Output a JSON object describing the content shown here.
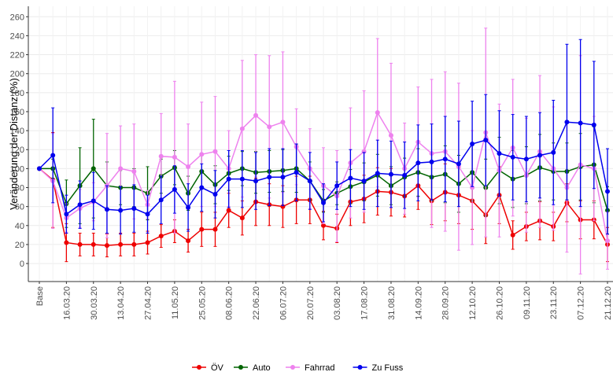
{
  "chart_data": {
    "type": "line",
    "y_label": "Veränderung der Distanz (%)",
    "categories": [
      "Base",
      null,
      "16.03.20",
      null,
      "30.03.20",
      null,
      "13.04.20",
      null,
      "27.04.20",
      null,
      "11.05.20",
      null,
      "25.05.20",
      null,
      "08.06.20",
      null,
      "22.06.20",
      null,
      "06.07.20",
      null,
      "20.07.20",
      null,
      "03.08.20",
      null,
      "17.08.20",
      null,
      "31.08.20",
      null,
      "14.09.20",
      null,
      "28.09.20",
      null,
      "12.10.20",
      null,
      "26.10.20",
      null,
      "09.11.20",
      null,
      "23.11.20",
      null,
      "07.12.20",
      null,
      "21.12.20"
    ],
    "series": [
      {
        "name": "ÖV",
        "color": "#ee0000",
        "values": [
          100,
          88,
          22,
          20,
          20,
          19,
          20,
          20,
          22,
          29,
          34,
          24,
          36,
          36,
          56,
          48,
          65,
          62,
          60,
          67,
          67,
          40,
          37,
          65,
          68,
          76,
          75,
          71,
          82,
          66,
          75,
          72,
          66,
          51,
          72,
          30,
          39,
          45,
          39,
          64,
          46,
          46,
          20
        ],
        "errors": [
          0,
          50,
          20,
          12,
          12,
          12,
          12,
          12,
          12,
          12,
          12,
          12,
          18,
          18,
          18,
          18,
          25,
          22,
          22,
          25,
          25,
          15,
          15,
          25,
          25,
          25,
          25,
          22,
          25,
          25,
          30,
          30,
          30,
          30,
          30,
          15,
          15,
          20,
          15,
          20,
          20,
          20,
          18
        ]
      },
      {
        "name": "Auto",
        "color": "#006400",
        "values": [
          100,
          100,
          63,
          82,
          100,
          82,
          80,
          80,
          74,
          92,
          101,
          74,
          97,
          83,
          95,
          100,
          96,
          97,
          98,
          100,
          87,
          66,
          74,
          81,
          86,
          93,
          82,
          91,
          96,
          91,
          94,
          84,
          96,
          80,
          98,
          89,
          93,
          101,
          97,
          97,
          102,
          104,
          56
        ],
        "errors": [
          0,
          10,
          25,
          40,
          52,
          25,
          18,
          20,
          28,
          18,
          18,
          18,
          18,
          20,
          18,
          18,
          22,
          22,
          22,
          25,
          20,
          12,
          12,
          18,
          20,
          22,
          20,
          20,
          25,
          25,
          30,
          30,
          30,
          30,
          35,
          30,
          30,
          35,
          30,
          30,
          35,
          40,
          25
        ]
      },
      {
        "name": "Fahrrad",
        "color": "#ee82ee",
        "values": [
          100,
          87,
          48,
          58,
          65,
          82,
          100,
          97,
          62,
          113,
          112,
          102,
          115,
          118,
          100,
          142,
          156,
          144,
          149,
          123,
          100,
          82,
          71,
          106,
          118,
          159,
          135,
          100,
          128,
          116,
          118,
          102,
          80,
          138,
          98,
          122,
          93,
          118,
          100,
          80,
          104,
          100,
          24
        ],
        "errors": [
          0,
          50,
          15,
          20,
          20,
          55,
          45,
          50,
          15,
          45,
          80,
          45,
          55,
          58,
          40,
          72,
          64,
          75,
          74,
          40,
          42,
          40,
          48,
          58,
          64,
          78,
          76,
          48,
          58,
          78,
          84,
          88,
          60,
          110,
          70,
          72,
          60,
          80,
          65,
          68,
          115,
          55,
          30
        ]
      },
      {
        "name": "Zu Fuss",
        "color": "#0000ee",
        "values": [
          100,
          114,
          52,
          62,
          66,
          57,
          56,
          58,
          52,
          67,
          78,
          59,
          80,
          73,
          89,
          89,
          87,
          91,
          91,
          96,
          87,
          64,
          82,
          90,
          87,
          95,
          94,
          93,
          106,
          107,
          110,
          105,
          126,
          130,
          116,
          112,
          110,
          114,
          117,
          149,
          148,
          146,
          76
        ],
        "errors": [
          0,
          50,
          20,
          25,
          30,
          25,
          25,
          25,
          20,
          25,
          25,
          25,
          25,
          25,
          30,
          30,
          30,
          30,
          30,
          30,
          30,
          20,
          25,
          30,
          30,
          35,
          35,
          35,
          40,
          40,
          45,
          45,
          45,
          48,
          45,
          45,
          45,
          45,
          55,
          82,
          88,
          67,
          45
        ]
      }
    ],
    "ylim": [
      -19,
      271
    ],
    "yticks": [
      0,
      20,
      40,
      60,
      80,
      100,
      120,
      140,
      160,
      180,
      200,
      220,
      240,
      260
    ],
    "grid": true,
    "legend": "bottom"
  }
}
